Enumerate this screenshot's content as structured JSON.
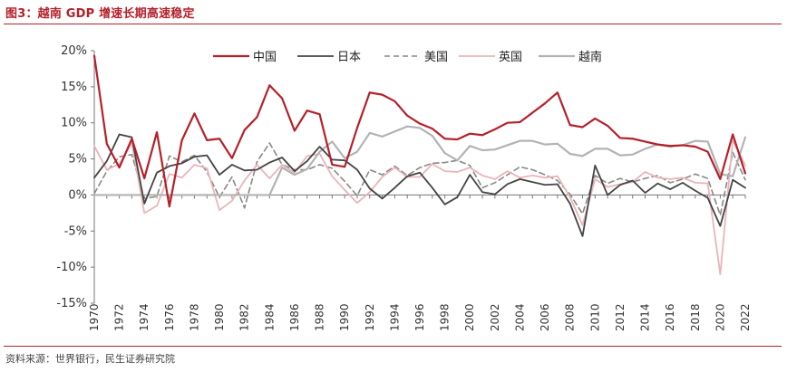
{
  "figure": {
    "title": "图3：越南 GDP 增速长期高速稳定",
    "source": "资料来源：世界银行，民生证券研究院"
  },
  "colors": {
    "china": "#b5202a",
    "japan": "#444444",
    "usa": "#888888",
    "uk": "#eab4b9",
    "vietnam": "#b3b3b3",
    "accent": "#b5202a"
  },
  "chart_data": {
    "type": "line",
    "title": "图3：越南 GDP 增速长期高速稳定",
    "xlabel": "",
    "ylabel": "",
    "ylim": [
      -15,
      20
    ],
    "y_ticks": [
      20,
      15,
      10,
      5,
      0,
      -5,
      -10,
      -15
    ],
    "y_tick_labels": [
      "20%",
      "15%",
      "10%",
      "5%",
      "0%",
      "-5%",
      "-10%",
      "-15%"
    ],
    "x": [
      1970,
      1971,
      1972,
      1973,
      1974,
      1975,
      1976,
      1977,
      1978,
      1979,
      1980,
      1981,
      1982,
      1983,
      1984,
      1985,
      1986,
      1987,
      1988,
      1989,
      1990,
      1991,
      1992,
      1993,
      1994,
      1995,
      1996,
      1997,
      1998,
      1999,
      2000,
      2001,
      2002,
      2003,
      2004,
      2005,
      2006,
      2007,
      2008,
      2009,
      2010,
      2011,
      2012,
      2013,
      2014,
      2015,
      2016,
      2017,
      2018,
      2019,
      2020,
      2021,
      2022
    ],
    "x_tick_labels": [
      "1970",
      "1972",
      "1974",
      "1976",
      "1978",
      "1980",
      "1982",
      "1984",
      "1986",
      "1988",
      "1990",
      "1992",
      "1994",
      "1996",
      "1998",
      "2000",
      "2002",
      "2004",
      "2006",
      "2008",
      "2010",
      "2012",
      "2014",
      "2016",
      "2018",
      "2020",
      "2022"
    ],
    "legend_position": "top",
    "series": [
      {
        "name": "中国",
        "key": "china",
        "style": "solid",
        "width": 2.2,
        "values": [
          19.3,
          7.1,
          3.8,
          7.8,
          2.3,
          8.7,
          -1.6,
          7.6,
          11.3,
          7.6,
          7.8,
          5.1,
          9.0,
          10.8,
          15.2,
          13.4,
          8.9,
          11.7,
          11.2,
          4.2,
          3.9,
          9.3,
          14.2,
          13.9,
          13.0,
          11.0,
          9.9,
          9.2,
          7.8,
          7.7,
          8.5,
          8.3,
          9.1,
          10.0,
          10.1,
          11.4,
          12.7,
          14.2,
          9.7,
          9.4,
          10.6,
          9.6,
          7.9,
          7.8,
          7.4,
          7.0,
          6.8,
          6.9,
          6.7,
          6.0,
          2.2,
          8.4,
          3.0
        ]
      },
      {
        "name": "日本",
        "key": "japan",
        "style": "solid",
        "width": 1.8,
        "values": [
          2.4,
          4.7,
          8.4,
          8.0,
          -1.2,
          3.1,
          4.0,
          4.4,
          5.3,
          5.5,
          2.8,
          4.2,
          3.4,
          3.5,
          4.5,
          5.2,
          3.3,
          4.7,
          6.7,
          4.9,
          4.8,
          3.5,
          0.9,
          -0.5,
          1.0,
          2.6,
          3.1,
          1.0,
          -1.3,
          -0.3,
          2.8,
          0.4,
          0.1,
          1.5,
          2.2,
          1.8,
          1.4,
          1.5,
          -1.2,
          -5.7,
          4.1,
          0.0,
          1.4,
          2.0,
          0.3,
          1.6,
          0.8,
          1.7,
          0.6,
          -0.4,
          -4.3,
          2.1,
          1.0
        ]
      },
      {
        "name": "美国",
        "key": "usa",
        "style": "dashed",
        "width": 1.6,
        "values": [
          0.2,
          3.3,
          5.3,
          5.6,
          -0.5,
          -0.2,
          5.4,
          4.6,
          5.5,
          3.2,
          -0.3,
          2.5,
          -1.8,
          4.6,
          7.2,
          4.2,
          3.5,
          3.5,
          4.2,
          3.7,
          1.9,
          -0.1,
          3.5,
          2.8,
          4.0,
          2.7,
          3.8,
          4.4,
          4.5,
          4.8,
          4.1,
          1.0,
          1.7,
          2.8,
          3.9,
          3.5,
          2.8,
          2.0,
          0.1,
          -2.6,
          2.7,
          1.6,
          2.3,
          1.8,
          2.3,
          2.7,
          1.7,
          2.2,
          2.9,
          2.3,
          -2.8,
          5.9,
          2.1
        ]
      },
      {
        "name": "英国",
        "key": "uk",
        "style": "solid",
        "width": 1.8,
        "values": [
          6.8,
          3.5,
          4.3,
          7.2,
          -2.5,
          -1.5,
          2.9,
          2.4,
          4.2,
          3.7,
          -2.1,
          -0.8,
          2.0,
          4.2,
          2.3,
          4.2,
          3.1,
          5.4,
          5.7,
          2.6,
          0.7,
          -1.1,
          0.4,
          2.5,
          3.8,
          2.5,
          2.5,
          4.3,
          3.3,
          3.2,
          3.8,
          2.7,
          2.2,
          3.3,
          2.4,
          2.7,
          2.4,
          2.6,
          -0.3,
          -4.2,
          2.2,
          1.1,
          1.5,
          1.8,
          3.2,
          2.4,
          2.2,
          2.4,
          1.7,
          1.6,
          -11.0,
          7.6,
          4.1
        ]
      },
      {
        "name": "越南",
        "key": "vietnam",
        "style": "solid",
        "width": 2.2,
        "values": [
          0,
          0,
          0,
          0,
          0,
          0,
          0,
          0,
          0,
          0,
          0,
          0,
          0,
          0,
          0,
          3.8,
          2.8,
          3.6,
          6.0,
          7.4,
          5.1,
          6.0,
          8.6,
          8.1,
          8.8,
          9.5,
          9.3,
          8.2,
          5.8,
          4.8,
          6.8,
          6.2,
          6.3,
          6.9,
          7.5,
          7.5,
          7.0,
          7.1,
          5.7,
          5.4,
          6.4,
          6.4,
          5.5,
          5.6,
          6.4,
          7.0,
          6.7,
          6.9,
          7.5,
          7.4,
          2.9,
          2.6,
          8.0
        ]
      }
    ]
  }
}
